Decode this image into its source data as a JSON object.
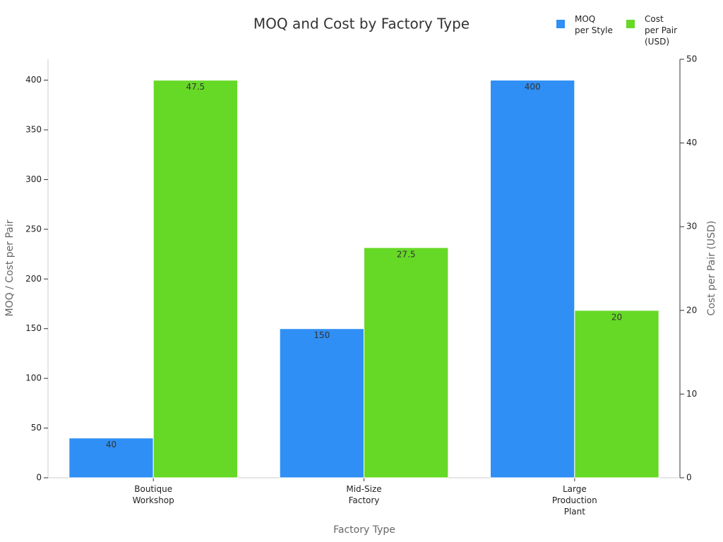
{
  "chart_data": {
    "type": "bar",
    "title": "MOQ and Cost by Factory Type",
    "x_label": "Factory Type",
    "y_label": "MOQ / Cost per Pair",
    "y2_label": "Cost per Pair (USD)",
    "categories": [
      "Boutique\nWorkshop",
      "Mid-Size\nFactory",
      "Large\nProduction\nPlant"
    ],
    "series": [
      {
        "name": "MOQ\nper Style",
        "color": "#2f8ff5",
        "values": [
          40,
          150,
          400
        ]
      },
      {
        "name": "Cost\nper Pair\n(USD)",
        "color": "#66d926",
        "values": [
          47.5,
          27.5,
          20
        ],
        "axis": "y2"
      }
    ],
    "ylim": [
      0,
      421
    ],
    "yticks": [
      0,
      50,
      100,
      150,
      200,
      250,
      300,
      350,
      400
    ],
    "y2lim": [
      0,
      50
    ],
    "y2ticks": [
      0,
      10,
      20,
      30,
      40,
      50
    ],
    "grid": false,
    "legend": "upper right"
  }
}
